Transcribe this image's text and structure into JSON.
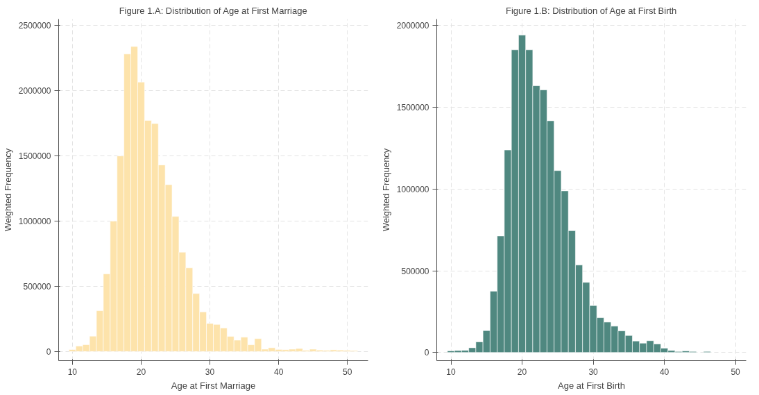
{
  "chart_data": [
    {
      "type": "histogram",
      "title": "Figure 1.A: Distribution of Age at First Marriage",
      "xlabel": "Age at First Marriage",
      "ylabel": "Weighted Frequency",
      "color": "#fde3ab",
      "bins": [
        9.5,
        10.5,
        11.5,
        12.5,
        13.5,
        14.5,
        15.5,
        16.5,
        17.5,
        18.5,
        19.5,
        20.5,
        21.5,
        22.5,
        23.5,
        24.5,
        25.5,
        26.5,
        27.5,
        28.5,
        29.5,
        30.5,
        31.5,
        32.5,
        33.5,
        34.5,
        35.5,
        36.5,
        37.5,
        38.5,
        39.5,
        40.5,
        41.5,
        42.5,
        43.5,
        44.5,
        45.5,
        46.5,
        47.5,
        48.5,
        49.5,
        50.5,
        51.5
      ],
      "values": [
        15000,
        42000,
        53000,
        118000,
        313000,
        595000,
        1000000,
        1500000,
        2282000,
        2340000,
        2067000,
        1773000,
        1749000,
        1431000,
        1280000,
        1036000,
        762000,
        642000,
        445000,
        304000,
        215000,
        208000,
        180000,
        116000,
        87000,
        110000,
        52000,
        99000,
        18000,
        29000,
        16000,
        14000,
        18000,
        23000,
        9000,
        18000,
        11000,
        9000,
        13000,
        11000,
        9000,
        7000
      ],
      "xlim": [
        8,
        53
      ],
      "xticks": [
        10,
        20,
        30,
        40,
        50
      ],
      "ylim": [
        -70000,
        2550000
      ],
      "yticks": [
        0,
        500000,
        1000000,
        1500000,
        2000000,
        2500000
      ],
      "grid": true
    },
    {
      "type": "histogram",
      "title": "Figure 1.B: Distribution of Age at First Birth",
      "xlabel": "Age at First Birth",
      "ylabel": "Weighted Frequency",
      "color": "#4f8880",
      "bins": [
        9.5,
        10.5,
        11.5,
        12.5,
        13.5,
        14.5,
        15.5,
        16.5,
        17.5,
        18.5,
        19.5,
        20.5,
        21.5,
        22.5,
        23.5,
        24.5,
        25.5,
        26.5,
        27.5,
        28.5,
        29.5,
        30.5,
        31.5,
        32.5,
        33.5,
        34.5,
        35.5,
        36.5,
        37.5,
        38.5,
        39.5,
        40.5,
        41.5,
        42.5,
        43.5,
        44.5,
        45.5,
        46.5
      ],
      "values": [
        10000,
        12000,
        13000,
        29000,
        65000,
        134000,
        375000,
        713000,
        1239000,
        1852000,
        1942000,
        1852000,
        1632000,
        1607000,
        1418000,
        1113000,
        989000,
        745000,
        535000,
        429000,
        287000,
        213000,
        186000,
        161000,
        132000,
        104000,
        70000,
        57000,
        72000,
        52000,
        26000,
        12000,
        6000,
        9000,
        6000,
        0,
        6000
      ],
      "xlim": [
        8,
        51.5
      ],
      "xticks": [
        10,
        20,
        30,
        40,
        50
      ],
      "ylim": [
        -50000,
        2040000
      ],
      "yticks": [
        0,
        500000,
        1000000,
        1500000,
        2000000
      ],
      "grid": true
    }
  ]
}
